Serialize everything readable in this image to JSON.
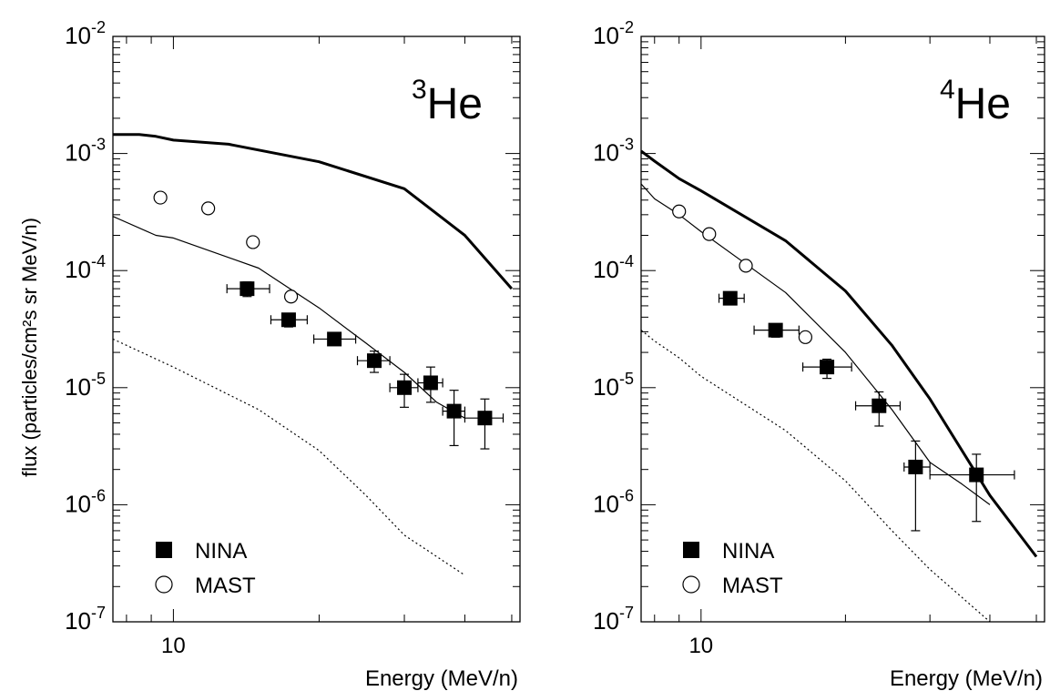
{
  "chart_data": [
    {
      "type": "scatter",
      "panel_label": {
        "superscript": "3",
        "element": "He"
      },
      "xlabel": "Energy (MeV/n)",
      "ylabel": "flux (particles/cm²s sr MeV/n)",
      "x_scale": "log",
      "y_scale": "log",
      "xlim": [
        7.5,
        52
      ],
      "ylim": [
        1e-07,
        0.01
      ],
      "x_tick_labels": [
        {
          "value": 10,
          "label": "10"
        }
      ],
      "y_tick_labels": [
        {
          "value": 0.01,
          "base": "10",
          "exp": "-2"
        },
        {
          "value": 0.001,
          "base": "10",
          "exp": "-3"
        },
        {
          "value": 0.0001,
          "base": "10",
          "exp": "-4"
        },
        {
          "value": 1e-05,
          "base": "10",
          "exp": "-5"
        },
        {
          "value": 1e-06,
          "base": "10",
          "exp": "-6"
        },
        {
          "value": 1e-07,
          "base": "10",
          "exp": "-7"
        }
      ],
      "legend": {
        "placement": "bottom-left",
        "entries": [
          {
            "label": "NINA",
            "marker": "filled-square"
          },
          {
            "label": "MAST",
            "marker": "open-circle"
          }
        ]
      },
      "series": [
        {
          "name": "NINA",
          "marker": "filled-square",
          "points": [
            {
              "x": 14.2,
              "y": 7e-05,
              "xerr": [
                12.9,
                15.8
              ],
              "yerr": [
                6e-05,
                8e-05
              ]
            },
            {
              "x": 17.3,
              "y": 3.8e-05,
              "xerr": [
                15.9,
                18.9
              ],
              "yerr": [
                3.3e-05,
                4.3e-05
              ]
            },
            {
              "x": 21.5,
              "y": 2.6e-05,
              "xerr": [
                19.5,
                23.8
              ],
              "yerr": [
                2.3e-05,
                2.9e-05
              ]
            },
            {
              "x": 26.0,
              "y": 1.7e-05,
              "xerr": [
                24.0,
                28.0
              ],
              "yerr": [
                1.35e-05,
                2.05e-05
              ]
            },
            {
              "x": 30.0,
              "y": 1e-05,
              "xerr": [
                28.0,
                32.0
              ],
              "yerr": [
                6.8e-06,
                1.3e-05
              ]
            },
            {
              "x": 34.0,
              "y": 1.1e-05,
              "xerr": [
                32.0,
                36.0
              ],
              "yerr": [
                7.5e-06,
                1.5e-05
              ]
            },
            {
              "x": 38.0,
              "y": 6.3e-06,
              "xerr": [
                36.0,
                40.0
              ],
              "yerr": [
                3.2e-06,
                9.5e-06
              ]
            },
            {
              "x": 44.0,
              "y": 5.5e-06,
              "xerr": [
                40.0,
                48.0
              ],
              "yerr": [
                3e-06,
                8e-06
              ]
            }
          ]
        },
        {
          "name": "MAST",
          "marker": "open-circle",
          "points": [
            {
              "x": 9.4,
              "y": 0.00042
            },
            {
              "x": 11.8,
              "y": 0.00034
            },
            {
              "x": 14.6,
              "y": 0.000175
            },
            {
              "x": 17.5,
              "y": 6e-05
            }
          ]
        }
      ],
      "curves": [
        {
          "style": "thick",
          "points": [
            [
              7.5,
              0.00145
            ],
            [
              8.5,
              0.00145
            ],
            [
              9.2,
              0.0014
            ],
            [
              10,
              0.0013
            ],
            [
              13,
              0.0012
            ],
            [
              20,
              0.00085
            ],
            [
              30,
              0.0005
            ],
            [
              40,
              0.0002
            ],
            [
              50,
              7e-05
            ]
          ]
        },
        {
          "style": "thin",
          "points": [
            [
              7.5,
              0.00029
            ],
            [
              9.2,
              0.0002
            ],
            [
              10,
              0.00019
            ],
            [
              15,
              0.000105
            ],
            [
              20,
              4.8e-05
            ],
            [
              25,
              2.4e-05
            ],
            [
              30,
              1.35e-05
            ],
            [
              35,
              7.5e-06
            ],
            [
              40,
              5.5e-06
            ]
          ]
        },
        {
          "style": "dotted",
          "points": [
            [
              7.5,
              2.6e-05
            ],
            [
              10,
              1.5e-05
            ],
            [
              15,
              6.5e-06
            ],
            [
              20,
              2.9e-06
            ],
            [
              25,
              1.2e-06
            ],
            [
              30,
              5.5e-07
            ],
            [
              40,
              2.5e-07
            ]
          ]
        }
      ]
    },
    {
      "type": "scatter",
      "panel_label": {
        "superscript": "4",
        "element": "He"
      },
      "xlabel": "Energy (MeV/n)",
      "ylabel": "",
      "x_scale": "log",
      "y_scale": "log",
      "xlim": [
        7.5,
        52
      ],
      "ylim": [
        1e-07,
        0.01
      ],
      "x_tick_labels": [
        {
          "value": 10,
          "label": "10"
        }
      ],
      "y_tick_labels": [
        {
          "value": 0.01,
          "base": "10",
          "exp": "-2"
        },
        {
          "value": 0.001,
          "base": "10",
          "exp": "-3"
        },
        {
          "value": 0.0001,
          "base": "10",
          "exp": "-4"
        },
        {
          "value": 1e-05,
          "base": "10",
          "exp": "-5"
        },
        {
          "value": 1e-06,
          "base": "10",
          "exp": "-6"
        },
        {
          "value": 1e-07,
          "base": "10",
          "exp": "-7"
        }
      ],
      "legend": {
        "placement": "bottom-left",
        "entries": [
          {
            "label": "NINA",
            "marker": "filled-square"
          },
          {
            "label": "MAST",
            "marker": "open-circle"
          }
        ]
      },
      "series": [
        {
          "name": "NINA",
          "marker": "filled-square",
          "points": [
            {
              "x": 11.5,
              "y": 5.8e-05,
              "xerr": [
                10.9,
                12.3
              ],
              "yerr": [
                5.2e-05,
                6.4e-05
              ]
            },
            {
              "x": 14.3,
              "y": 3.1e-05,
              "xerr": [
                12.9,
                16.0
              ],
              "yerr": [
                2.7e-05,
                3.5e-05
              ]
            },
            {
              "x": 18.3,
              "y": 1.5e-05,
              "xerr": [
                16.3,
                20.6
              ],
              "yerr": [
                1.2e-05,
                1.75e-05
              ]
            },
            {
              "x": 23.5,
              "y": 7e-06,
              "xerr": [
                21.0,
                26.0
              ],
              "yerr": [
                4.7e-06,
                9.2e-06
              ]
            },
            {
              "x": 28.0,
              "y": 2.1e-06,
              "xerr": [
                26.5,
                30.0
              ],
              "yerr": [
                6e-07,
                3.5e-06
              ]
            },
            {
              "x": 37.5,
              "y": 1.8e-06,
              "xerr": [
                30.0,
                45.0
              ],
              "yerr": [
                7.2e-07,
                2.7e-06
              ]
            }
          ]
        },
        {
          "name": "MAST",
          "marker": "open-circle",
          "points": [
            {
              "x": 9.0,
              "y": 0.00032
            },
            {
              "x": 10.4,
              "y": 0.000205
            },
            {
              "x": 12.4,
              "y": 0.00011
            },
            {
              "x": 16.5,
              "y": 2.7e-05
            }
          ]
        }
      ],
      "curves": [
        {
          "style": "thick",
          "points": [
            [
              7.5,
              0.00105
            ],
            [
              8,
              0.00086
            ],
            [
              9,
              0.00061
            ],
            [
              10,
              0.00048
            ],
            [
              15,
              0.00018
            ],
            [
              20,
              6.7e-05
            ],
            [
              25,
              2.3e-05
            ],
            [
              30,
              8e-06
            ],
            [
              40,
              1.2e-06
            ],
            [
              50,
              3.6e-07
            ]
          ]
        },
        {
          "style": "thin",
          "points": [
            [
              7.5,
              0.00055
            ],
            [
              8,
              0.00041
            ],
            [
              9,
              0.0003
            ],
            [
              10,
              0.000215
            ],
            [
              15,
              6.5e-05
            ],
            [
              20,
              2e-05
            ],
            [
              25,
              6.5e-06
            ],
            [
              30,
              2.3e-06
            ],
            [
              35,
              1.5e-06
            ],
            [
              40,
              1e-06
            ]
          ]
        },
        {
          "style": "dotted",
          "points": [
            [
              7.5,
              3.1e-05
            ],
            [
              8,
              2.5e-05
            ],
            [
              9,
              1.8e-05
            ],
            [
              10,
              1.25e-05
            ],
            [
              15,
              4.3e-06
            ],
            [
              20,
              1.6e-06
            ],
            [
              25,
              6e-07
            ],
            [
              30,
              2.8e-07
            ],
            [
              40,
              1e-07
            ]
          ]
        }
      ]
    }
  ]
}
